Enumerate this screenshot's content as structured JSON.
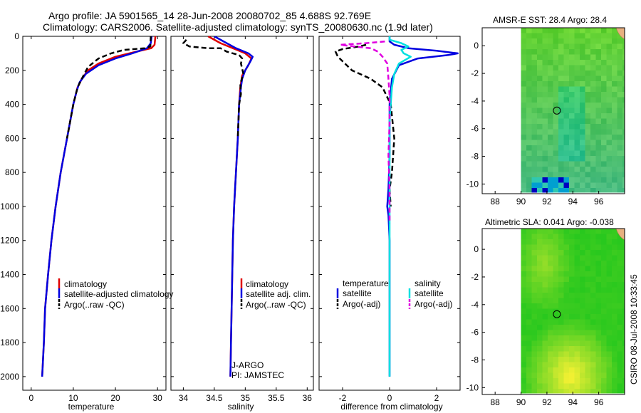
{
  "header": {
    "title_line1": "Argo profile: JA 5901565_14 28-Jun-2008 20080702_85 4.688S 92.769E",
    "title_line2": "Climatology: CARS2006. Satellite-adjusted climatology: synTS_20080630.nc (1.9d later)"
  },
  "colors": {
    "climatology": "#e00000",
    "satellite": "#0000e0",
    "argo": "#000000",
    "salinity_satellite": "#00e0e0",
    "salinity_argo": "#e000e0"
  },
  "side_label": "CSIRO 08-Jul-2008 10:33:45",
  "chart_data": [
    {
      "type": "line",
      "id": "temperature",
      "xlabel": "temperature",
      "ylabel": "",
      "xlim": [
        -2,
        32
      ],
      "ylim": [
        2080,
        0
      ],
      "xticks": [
        0,
        10,
        20,
        30
      ],
      "yticks": [
        0,
        200,
        400,
        600,
        800,
        1000,
        1200,
        1400,
        1600,
        1800,
        2000
      ],
      "legend": [
        "climatology",
        "satellite-adjusted climatology",
        "Argo(..raw -QC)"
      ],
      "annotations": [],
      "series": [
        {
          "name": "climatology",
          "style": "solid",
          "color": "#e00000",
          "points": [
            [
              29.5,
              0
            ],
            [
              29.3,
              50
            ],
            [
              28.5,
              70
            ],
            [
              25,
              90
            ],
            [
              20,
              120
            ],
            [
              16,
              160
            ],
            [
              13.5,
              200
            ],
            [
              12,
              250
            ],
            [
              11,
              300
            ],
            [
              10,
              400
            ],
            [
              8.5,
              600
            ],
            [
              7,
              800
            ],
            [
              5.8,
              1000
            ],
            [
              4.8,
              1200
            ],
            [
              4,
              1400
            ],
            [
              3.3,
              1600
            ],
            [
              3,
              1800
            ],
            [
              2.6,
              2000
            ]
          ]
        },
        {
          "name": "satellite-adjusted climatology",
          "style": "solid",
          "color": "#0000e0",
          "points": [
            [
              28.6,
              0
            ],
            [
              28.4,
              40
            ],
            [
              27.5,
              70
            ],
            [
              24,
              100
            ],
            [
              20,
              130
            ],
            [
              16,
              170
            ],
            [
              13,
              220
            ],
            [
              11.5,
              270
            ],
            [
              10.8,
              320
            ],
            [
              10,
              400
            ],
            [
              8.5,
              600
            ],
            [
              7,
              800
            ],
            [
              5.8,
              1000
            ],
            [
              4.8,
              1200
            ],
            [
              4,
              1400
            ],
            [
              3.3,
              1600
            ],
            [
              3,
              1800
            ],
            [
              2.6,
              2000
            ]
          ]
        },
        {
          "name": "Argo(..raw -QC)",
          "style": "dashed",
          "color": "#000000",
          "points": [
            [
              28.4,
              0
            ],
            [
              28.3,
              60
            ],
            [
              27,
              70
            ],
            [
              22,
              80
            ],
            [
              19,
              100
            ],
            [
              16,
              130
            ],
            [
              13.5,
              180
            ],
            [
              12,
              250
            ],
            [
              11,
              300
            ],
            [
              10,
              400
            ],
            [
              8.5,
              600
            ]
          ]
        }
      ]
    },
    {
      "type": "line",
      "id": "salinity",
      "xlabel": "salinity",
      "ylabel": "",
      "xlim": [
        33.8,
        36.1
      ],
      "ylim": [
        2080,
        0
      ],
      "xticks": [
        34,
        34.5,
        35,
        35.5,
        36
      ],
      "yticks": [
        0,
        200,
        400,
        600,
        800,
        1000,
        1200,
        1400,
        1600,
        1800,
        2000
      ],
      "legend": [
        "climatology",
        "satellite adj. clim.",
        "Argo(..raw -QC)"
      ],
      "annotations": [
        "J-ARGO",
        "PI: JAMSTEC"
      ],
      "series": [
        {
          "name": "climatology",
          "style": "solid",
          "color": "#e00000",
          "points": [
            [
              34.4,
              0
            ],
            [
              34.6,
              40
            ],
            [
              34.8,
              70
            ],
            [
              35.0,
              100
            ],
            [
              35.1,
              130
            ],
            [
              35.05,
              170
            ],
            [
              34.95,
              230
            ],
            [
              34.92,
              300
            ],
            [
              34.9,
              400
            ],
            [
              34.88,
              600
            ],
            [
              34.85,
              800
            ],
            [
              34.82,
              1000
            ],
            [
              34.8,
              1200
            ],
            [
              34.79,
              1400
            ],
            [
              34.78,
              1600
            ],
            [
              34.77,
              1800
            ],
            [
              34.76,
              2000
            ]
          ]
        },
        {
          "name": "satellite adj. clim.",
          "style": "solid",
          "color": "#0000e0",
          "points": [
            [
              34.5,
              0
            ],
            [
              34.7,
              40
            ],
            [
              34.85,
              70
            ],
            [
              35.05,
              100
            ],
            [
              35.12,
              120
            ],
            [
              35.08,
              150
            ],
            [
              35.0,
              200
            ],
            [
              34.95,
              250
            ],
            [
              34.93,
              300
            ],
            [
              34.9,
              400
            ],
            [
              34.88,
              600
            ],
            [
              34.85,
              800
            ],
            [
              34.82,
              1000
            ],
            [
              34.8,
              1200
            ],
            [
              34.79,
              1400
            ],
            [
              34.78,
              1600
            ],
            [
              34.77,
              1800
            ],
            [
              34.76,
              2000
            ]
          ]
        },
        {
          "name": "Argo(..raw -QC)",
          "style": "dashed",
          "color": "#000000",
          "points": [
            [
              34.05,
              20
            ],
            [
              34.0,
              40
            ],
            [
              34.1,
              60
            ],
            [
              34.4,
              70
            ],
            [
              34.6,
              70
            ],
            [
              34.7,
              90
            ],
            [
              34.8,
              100
            ],
            [
              34.9,
              110
            ],
            [
              34.95,
              130
            ],
            [
              34.93,
              160
            ],
            [
              34.97,
              220
            ],
            [
              34.92,
              280
            ],
            [
              34.93,
              340
            ],
            [
              34.9,
              400
            ],
            [
              34.88,
              600
            ]
          ]
        }
      ]
    },
    {
      "type": "line",
      "id": "difference",
      "xlabel": "difference from climatology",
      "ylabel": "",
      "xlim": [
        -3.0,
        3.0
      ],
      "ylim": [
        2080,
        0
      ],
      "xticks": [
        -2,
        0,
        2
      ],
      "yticks": [
        0,
        200,
        400,
        600,
        800,
        1000,
        1200,
        1400,
        1600,
        1800,
        2000
      ],
      "legend": [
        "temperature",
        "satellite",
        "Argo(-adj)",
        "salinity",
        "satellite",
        "Argo(-adj)"
      ],
      "annotations": [],
      "series": [
        {
          "name": "temperature satellite",
          "style": "solid",
          "color": "#0000e0",
          "points": [
            [
              0,
              0
            ],
            [
              0,
              30
            ],
            [
              0.2,
              50
            ],
            [
              0.8,
              70
            ],
            [
              2,
              85
            ],
            [
              2.9,
              100
            ],
            [
              2.5,
              110
            ],
            [
              1.2,
              130
            ],
            [
              0.4,
              170
            ],
            [
              0.1,
              250
            ],
            [
              0,
              400
            ],
            [
              0,
              700
            ],
            [
              -0.05,
              900
            ],
            [
              -0.1,
              1000
            ],
            [
              -0.05,
              1050
            ],
            [
              0,
              1200
            ],
            [
              0,
              1600
            ],
            [
              0,
              2000
            ]
          ]
        },
        {
          "name": "temperature Argo(-adj)",
          "style": "dashed",
          "color": "#000000",
          "points": [
            [
              -1.0,
              50
            ],
            [
              -1.3,
              60
            ],
            [
              -2.0,
              75
            ],
            [
              -2.3,
              90
            ],
            [
              -2.2,
              120
            ],
            [
              -1.9,
              160
            ],
            [
              -1.6,
              200
            ],
            [
              -0.8,
              250
            ],
            [
              -0.3,
              300
            ],
            [
              0.05,
              400
            ],
            [
              0.2,
              600
            ],
            [
              0.1,
              800
            ],
            [
              0,
              900
            ],
            [
              0.05,
              1000
            ]
          ]
        },
        {
          "name": "salinity satellite",
          "style": "solid",
          "color": "#00e0e0",
          "points": [
            [
              0,
              0
            ],
            [
              0,
              20
            ],
            [
              0.5,
              40
            ],
            [
              0.8,
              60
            ],
            [
              0.5,
              80
            ],
            [
              0.6,
              100
            ],
            [
              0.9,
              120
            ],
            [
              0.4,
              160
            ],
            [
              0.2,
              220
            ],
            [
              0.1,
              300
            ],
            [
              0.05,
              400
            ],
            [
              0,
              500
            ],
            [
              0,
              2000
            ]
          ]
        },
        {
          "name": "salinity Argo(-adj)",
          "style": "dashed",
          "color": "#e000e0",
          "points": [
            [
              -0.2,
              30
            ],
            [
              -1.0,
              40
            ],
            [
              -2.1,
              50
            ],
            [
              -1.5,
              60
            ],
            [
              -0.8,
              70
            ],
            [
              -0.5,
              90
            ],
            [
              -0.3,
              120
            ],
            [
              -0.1,
              160
            ],
            [
              -0.05,
              250
            ],
            [
              0,
              350
            ],
            [
              0,
              500
            ],
            [
              -0.05,
              700
            ],
            [
              0,
              900
            ],
            [
              0,
              1100
            ]
          ]
        }
      ]
    },
    {
      "type": "heatmap",
      "id": "sst-map",
      "title": "AMSR-E SST: 28.4  Argo: 28.4",
      "xlim": [
        87,
        98
      ],
      "ylim": [
        -10.7,
        1.3
      ],
      "xticks": [
        88,
        90,
        92,
        94,
        96
      ],
      "yticks": [
        0,
        -2,
        -4,
        -6,
        -8,
        -10
      ],
      "marker": [
        92.769,
        -4.688
      ],
      "legend": [],
      "annotations": []
    },
    {
      "type": "heatmap",
      "id": "sla-map",
      "title": "Altimetric SLA: 0.041  Argo: -0.038",
      "xlim": [
        87,
        98
      ],
      "ylim": [
        -10.5,
        1.5
      ],
      "xticks": [
        88,
        90,
        92,
        94,
        96
      ],
      "yticks": [
        0,
        -2,
        -4,
        -6,
        -8,
        -10
      ],
      "marker": [
        92.769,
        -4.688
      ],
      "legend": [],
      "annotations": []
    }
  ]
}
